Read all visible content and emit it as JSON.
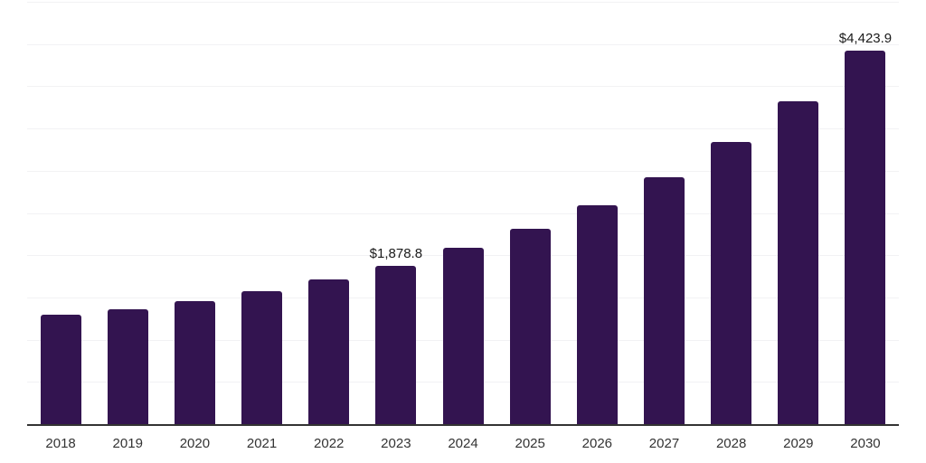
{
  "chart_data": {
    "type": "bar",
    "title": "",
    "xlabel": "",
    "ylabel": "",
    "categories": [
      "2018",
      "2019",
      "2020",
      "2021",
      "2022",
      "2023",
      "2024",
      "2025",
      "2026",
      "2027",
      "2028",
      "2029",
      "2030"
    ],
    "values": [
      1295,
      1365,
      1460,
      1575,
      1715,
      1878.8,
      2090,
      2315,
      2590,
      2925,
      3340,
      3825,
      4423.9
    ],
    "data_labels": {
      "2023": "$1,878.8",
      "2030": "$4,423.9"
    },
    "ylim": [
      0,
      5000
    ],
    "gridline_interval": 500,
    "grid": true,
    "legend": "none",
    "y_axis_tick_labels_visible": false
  },
  "style": {
    "background": "#ffffff",
    "bar_color": "#331450",
    "grid_color": "#f2f2f4",
    "axis_line_color": "#333333",
    "tick_label_color": "#333333",
    "data_label_color": "#1a1a1a"
  }
}
